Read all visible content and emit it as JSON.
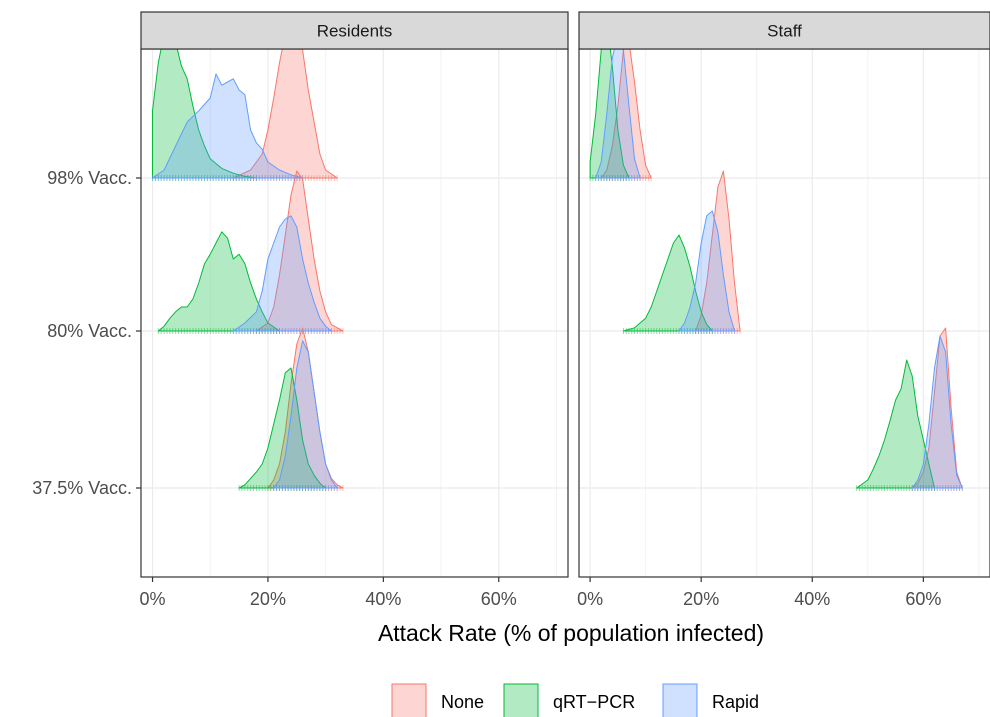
{
  "chart_data": {
    "type": "ridgeline-density",
    "xlabel": "Attack Rate (% of population infected)",
    "ylabel": "",
    "xlim": [
      -2,
      72
    ],
    "x_ticks": [
      0,
      20,
      40,
      60
    ],
    "x_tick_labels": [
      "0%",
      "20%",
      "40%",
      "60%"
    ],
    "grid": true,
    "legend_position": "bottom",
    "rows": [
      "98% Vacc.",
      "80% Vacc.",
      "37.5% Vacc."
    ],
    "legend": [
      {
        "name": "None",
        "color": "#F8766D"
      },
      {
        "name": "qRT−PCR",
        "color": "#00BA38"
      },
      {
        "name": "Rapid",
        "color": "#619CFF"
      }
    ],
    "facets": [
      {
        "label": "Residents",
        "rows": [
          {
            "row": "98% Vacc.",
            "series": [
              {
                "name": "None",
                "x": [
                  14,
                  17,
                  19,
                  20,
                  21,
                  22,
                  23,
                  24,
                  25,
                  26,
                  27,
                  28,
                  29,
                  30,
                  32
                ],
                "h": [
                  0,
                  0.05,
                  0.15,
                  0.3,
                  0.5,
                  0.72,
                  0.9,
                  1.0,
                  0.96,
                  0.8,
                  0.55,
                  0.35,
                  0.15,
                  0.05,
                  0
                ]
              },
              {
                "name": "qRT−PCR",
                "x": [
                  0,
                  1,
                  2,
                  3,
                  4,
                  5,
                  6,
                  7,
                  8,
                  9,
                  10,
                  12,
                  14,
                  16,
                  18
                ],
                "h": [
                  0.42,
                  0.72,
                  0.9,
                  1.0,
                  0.85,
                  0.7,
                  0.62,
                  0.45,
                  0.3,
                  0.2,
                  0.12,
                  0.06,
                  0.03,
                  0.01,
                  0
                ]
              },
              {
                "name": "Rapid",
                "x": [
                  0,
                  2,
                  4,
                  6,
                  8,
                  10,
                  11,
                  12,
                  13,
                  14,
                  15,
                  16,
                  17,
                  18,
                  19,
                  20,
                  22,
                  24,
                  26
                ],
                "h": [
                  0,
                  0.05,
                  0.2,
                  0.35,
                  0.42,
                  0.5,
                  0.65,
                  0.58,
                  0.6,
                  0.62,
                  0.55,
                  0.52,
                  0.3,
                  0.22,
                  0.18,
                  0.1,
                  0.05,
                  0.02,
                  0
                ]
              }
            ]
          },
          {
            "row": "80% Vacc.",
            "series": [
              {
                "name": "None",
                "x": [
                  18,
                  20,
                  21,
                  22,
                  23,
                  24,
                  25,
                  26,
                  27,
                  28,
                  29,
                  30,
                  31,
                  33
                ],
                "h": [
                  0,
                  0.05,
                  0.15,
                  0.35,
                  0.6,
                  0.85,
                  1.0,
                  0.95,
                  0.7,
                  0.45,
                  0.25,
                  0.12,
                  0.04,
                  0
                ]
              },
              {
                "name": "qRT−PCR",
                "x": [
                  1,
                  2,
                  3,
                  4,
                  5,
                  6,
                  7,
                  8,
                  9,
                  10,
                  11,
                  12,
                  13,
                  14,
                  15,
                  16,
                  17,
                  18,
                  19,
                  20,
                  22
                ],
                "h": [
                  0,
                  0.03,
                  0.08,
                  0.12,
                  0.15,
                  0.15,
                  0.2,
                  0.3,
                  0.42,
                  0.48,
                  0.55,
                  0.62,
                  0.58,
                  0.45,
                  0.48,
                  0.42,
                  0.3,
                  0.2,
                  0.12,
                  0.05,
                  0
                ]
              },
              {
                "name": "Rapid",
                "x": [
                  14,
                  16,
                  18,
                  19,
                  20,
                  21,
                  22,
                  23,
                  24,
                  25,
                  26,
                  27,
                  28,
                  29,
                  30,
                  31
                ],
                "h": [
                  0,
                  0.05,
                  0.12,
                  0.25,
                  0.45,
                  0.55,
                  0.65,
                  0.7,
                  0.72,
                  0.65,
                  0.45,
                  0.3,
                  0.18,
                  0.08,
                  0.03,
                  0
                ]
              }
            ]
          },
          {
            "row": "37.5% Vacc.",
            "series": [
              {
                "name": "None",
                "x": [
                  20,
                  21,
                  22,
                  23,
                  24,
                  25,
                  26,
                  27,
                  28,
                  29,
                  30,
                  31,
                  32,
                  33
                ],
                "h": [
                  0,
                  0.05,
                  0.15,
                  0.35,
                  0.65,
                  0.9,
                  1.0,
                  0.85,
                  0.6,
                  0.35,
                  0.15,
                  0.06,
                  0.02,
                  0
                ]
              },
              {
                "name": "qRT−PCR",
                "x": [
                  15,
                  16,
                  17,
                  18,
                  19,
                  20,
                  21,
                  22,
                  23,
                  24,
                  25,
                  26,
                  27,
                  28,
                  29,
                  30
                ],
                "h": [
                  0,
                  0.02,
                  0.06,
                  0.1,
                  0.15,
                  0.25,
                  0.4,
                  0.55,
                  0.72,
                  0.75,
                  0.55,
                  0.3,
                  0.15,
                  0.08,
                  0.03,
                  0
                ]
              },
              {
                "name": "Rapid",
                "x": [
                  21,
                  22,
                  23,
                  24,
                  25,
                  26,
                  27,
                  28,
                  29,
                  30,
                  31,
                  32
                ],
                "h": [
                  0,
                  0.05,
                  0.2,
                  0.45,
                  0.75,
                  0.92,
                  0.85,
                  0.6,
                  0.35,
                  0.15,
                  0.05,
                  0
                ]
              }
            ]
          }
        ]
      },
      {
        "label": "Staff",
        "rows": [
          {
            "row": "98% Vacc.",
            "series": [
              {
                "name": "None",
                "x": [
                  2,
                  3,
                  4,
                  5,
                  6,
                  7,
                  8,
                  9,
                  10,
                  11
                ],
                "h": [
                  0,
                  0.05,
                  0.2,
                  0.45,
                  0.8,
                  0.85,
                  0.6,
                  0.3,
                  0.08,
                  0
                ]
              },
              {
                "name": "qRT−PCR",
                "x": [
                  0,
                  1,
                  2,
                  3,
                  4,
                  5,
                  6,
                  7
                ],
                "h": [
                  0.1,
                  0.4,
                  0.8,
                  1.0,
                  0.7,
                  0.3,
                  0.08,
                  0
                ]
              },
              {
                "name": "Rapid",
                "x": [
                  1,
                  2,
                  3,
                  4,
                  5,
                  6,
                  7,
                  8,
                  9
                ],
                "h": [
                  0,
                  0.1,
                  0.4,
                  0.75,
                  0.9,
                  0.8,
                  0.45,
                  0.12,
                  0
                ]
              }
            ]
          },
          {
            "row": "80% Vacc.",
            "series": [
              {
                "name": "None",
                "x": [
                  19,
                  20,
                  21,
                  22,
                  23,
                  24,
                  25,
                  26,
                  27
                ],
                "h": [
                  0,
                  0.1,
                  0.3,
                  0.6,
                  0.9,
                  1.0,
                  0.7,
                  0.3,
                  0
                ]
              },
              {
                "name": "qRT−PCR",
                "x": [
                  6,
                  8,
                  10,
                  11,
                  12,
                  13,
                  14,
                  15,
                  16,
                  17,
                  18,
                  19,
                  20,
                  21,
                  22
                ],
                "h": [
                  0,
                  0.02,
                  0.08,
                  0.15,
                  0.25,
                  0.35,
                  0.45,
                  0.55,
                  0.6,
                  0.52,
                  0.4,
                  0.25,
                  0.12,
                  0.04,
                  0
                ]
              },
              {
                "name": "Rapid",
                "x": [
                  16,
                  17,
                  18,
                  19,
                  20,
                  21,
                  22,
                  23,
                  24,
                  25,
                  26
                ],
                "h": [
                  0,
                  0.05,
                  0.15,
                  0.3,
                  0.55,
                  0.72,
                  0.75,
                  0.62,
                  0.35,
                  0.12,
                  0
                ]
              }
            ]
          },
          {
            "row": "37.5% Vacc.",
            "series": [
              {
                "name": "None",
                "x": [
                  58,
                  59,
                  60,
                  61,
                  62,
                  63,
                  64,
                  65,
                  66,
                  67
                ],
                "h": [
                  0,
                  0.03,
                  0.1,
                  0.25,
                  0.6,
                  0.95,
                  1.0,
                  0.5,
                  0.1,
                  0
                ]
              },
              {
                "name": "qRT−PCR",
                "x": [
                  48,
                  50,
                  51,
                  52,
                  53,
                  54,
                  55,
                  56,
                  57,
                  58,
                  59,
                  60,
                  61,
                  62
                ],
                "h": [
                  0,
                  0.05,
                  0.12,
                  0.2,
                  0.3,
                  0.42,
                  0.55,
                  0.62,
                  0.8,
                  0.7,
                  0.45,
                  0.3,
                  0.15,
                  0
                ]
              },
              {
                "name": "Rapid",
                "x": [
                  58,
                  59,
                  60,
                  61,
                  62,
                  63,
                  64,
                  65,
                  66,
                  67
                ],
                "h": [
                  0,
                  0.05,
                  0.15,
                  0.4,
                  0.75,
                  0.95,
                  0.85,
                  0.4,
                  0.08,
                  0
                ]
              }
            ]
          }
        ]
      }
    ]
  }
}
